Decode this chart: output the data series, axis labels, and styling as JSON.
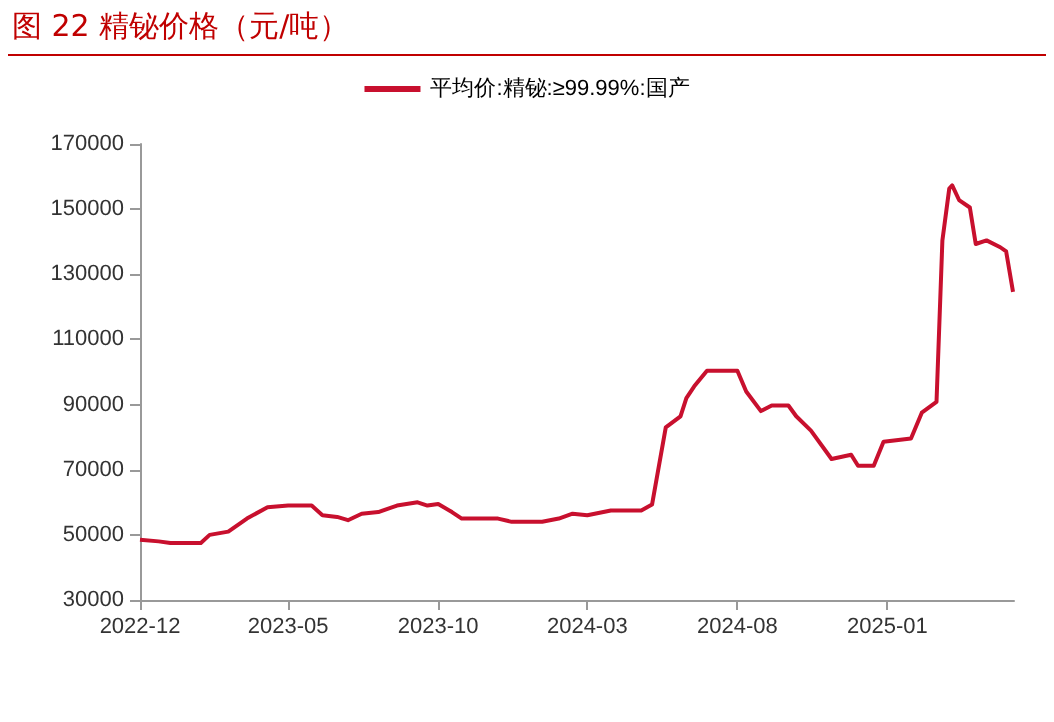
{
  "chart_data": {
    "type": "line",
    "title": "图 22 精铋价格（元/吨）",
    "x": [
      "2022-12-01",
      "2022-12-20",
      "2023-01-01",
      "2023-02-01",
      "2023-02-10",
      "2023-03-01",
      "2023-03-20",
      "2023-04-10",
      "2023-05-01",
      "2023-05-25",
      "2023-06-05",
      "2023-06-20",
      "2023-07-01",
      "2023-07-15",
      "2023-08-01",
      "2023-08-20",
      "2023-09-10",
      "2023-09-20",
      "2023-10-01",
      "2023-10-15",
      "2023-10-25",
      "2023-12-01",
      "2023-12-15",
      "2024-01-15",
      "2024-02-01",
      "2024-02-15",
      "2024-03-01",
      "2024-03-25",
      "2024-04-25",
      "2024-05-06",
      "2024-05-20",
      "2024-06-04",
      "2024-06-10",
      "2024-06-18",
      "2024-07-01",
      "2024-08-01",
      "2024-08-10",
      "2024-08-25",
      "2024-09-05",
      "2024-09-22",
      "2024-09-30",
      "2024-10-15",
      "2024-11-05",
      "2024-11-25",
      "2024-12-02",
      "2024-12-18",
      "2024-12-28",
      "2025-01-25",
      "2025-02-05",
      "2025-02-20",
      "2025-02-26",
      "2025-03-05",
      "2025-03-08",
      "2025-03-15",
      "2025-03-26",
      "2025-04-01",
      "2025-04-12",
      "2025-04-26",
      "2025-05-02",
      "2025-05-09"
    ],
    "series": [
      {
        "name": "平均价:精铋:≥99.99%:国产",
        "color": "#c8102e",
        "values": [
          48500,
          48000,
          47500,
          47500,
          50000,
          51000,
          55000,
          58500,
          59000,
          59000,
          56000,
          55500,
          54500,
          56500,
          57000,
          59000,
          60000,
          59000,
          59500,
          57000,
          55000,
          55000,
          54000,
          54000,
          55000,
          56500,
          56000,
          57500,
          57500,
          59300,
          83000,
          86400,
          92000,
          95600,
          100400,
          100400,
          94000,
          88000,
          89700,
          89700,
          86400,
          82000,
          73300,
          74600,
          71200,
          71200,
          78600,
          79600,
          87500,
          90800,
          140400,
          156300,
          157300,
          152800,
          150500,
          139300,
          140400,
          138300,
          137000,
          124600
        ]
      }
    ],
    "xlim": [
      "2022-12-01",
      "2025-05-10"
    ],
    "xticks": [
      "2022-12",
      "2023-05",
      "2023-10",
      "2024-03",
      "2024-08",
      "2025-01"
    ],
    "ylim": [
      30000,
      170000
    ],
    "yticks": [
      30000,
      50000,
      70000,
      90000,
      110000,
      130000,
      150000,
      170000
    ],
    "legend": "top",
    "grid": false,
    "marker": "none",
    "line_style": "solid"
  }
}
